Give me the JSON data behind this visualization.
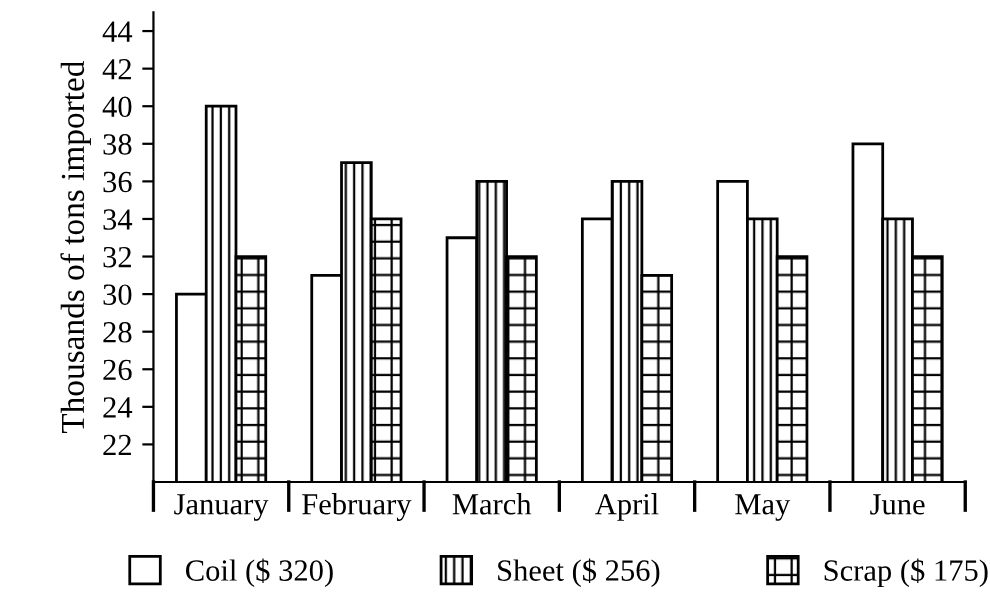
{
  "chart_data": {
    "type": "bar",
    "ylabel": "Thousands of tons imported",
    "categories": [
      "January",
      "February",
      "March",
      "April",
      "May",
      "June"
    ],
    "series": [
      {
        "name": "Coil ($ 320)",
        "color": "#ffffff",
        "values": [
          30,
          31,
          33,
          34,
          36,
          38
        ]
      },
      {
        "name": "Sheet ($ 256)",
        "color": "#000000",
        "values": [
          40,
          37,
          36,
          36,
          34,
          34
        ]
      },
      {
        "name": "Scrap ($ 175)",
        "color": "#000000",
        "values": [
          32,
          34,
          32,
          31,
          32,
          32
        ]
      }
    ],
    "ylim": [
      20,
      45
    ],
    "yticks": [
      22,
      24,
      26,
      28,
      30,
      32,
      34,
      36,
      38,
      40,
      42,
      44
    ],
    "grid": false,
    "legend": "bottom"
  }
}
